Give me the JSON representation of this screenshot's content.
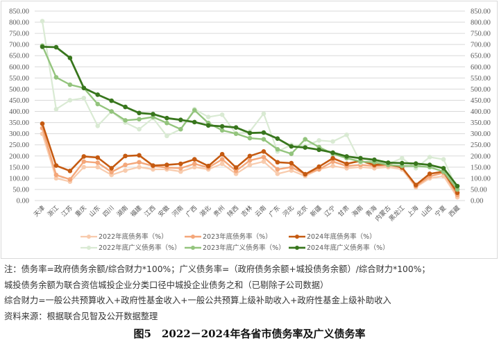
{
  "chart_data": {
    "type": "line",
    "title": "图5 2022－2024年各省市债务率及广义债务率",
    "xlabel": "",
    "ylabel": "",
    "ylim": [
      0,
      850
    ],
    "y_ticks": [
      "0.00",
      "50.00",
      "100.00",
      "150.00",
      "200.00",
      "250.00",
      "300.00",
      "350.00",
      "400.00",
      "450.00",
      "500.00",
      "550.00",
      "600.00",
      "650.00",
      "700.00",
      "750.00",
      "800.00",
      "850.00"
    ],
    "grid": true,
    "legend_position": "bottom",
    "categories": [
      "天津",
      "浙江",
      "江苏",
      "重庆",
      "山东",
      "四川",
      "湖南",
      "福建",
      "江西",
      "安徽",
      "河南",
      "广西",
      "湖北",
      "贵州",
      "陕西",
      "吉林",
      "云南",
      "广东",
      "河北",
      "北京",
      "新疆",
      "辽宁",
      "甘肃",
      "海南",
      "青海",
      "内蒙古",
      "黑龙江",
      "上海",
      "山西",
      "宁夏",
      "西藏"
    ],
    "series": [
      {
        "name": "2022年底债务率（%）",
        "color": "#f8cbad",
        "width": 2.2,
        "values": [
          300,
          100,
          85,
          150,
          150,
          115,
          135,
          150,
          140,
          140,
          130,
          150,
          140,
          165,
          120,
          160,
          175,
          120,
          135,
          110,
          140,
          155,
          145,
          150,
          145,
          150,
          140,
          60,
          100,
          110,
          15
        ]
      },
      {
        "name": "2023年底债务率（%）",
        "color": "#f4a77a",
        "width": 2.4,
        "values": [
          325,
          115,
          95,
          175,
          170,
          128,
          160,
          172,
          155,
          148,
          145,
          165,
          148,
          185,
          133,
          180,
          195,
          140,
          150,
          118,
          140,
          175,
          155,
          160,
          155,
          158,
          150,
          65,
          108,
          125,
          25
        ]
      },
      {
        "name": "2024年底债务率（%）",
        "color": "#c55a11",
        "width": 2.6,
        "values": [
          345,
          157,
          133,
          198,
          193,
          145,
          200,
          203,
          157,
          160,
          165,
          185,
          155,
          208,
          148,
          200,
          220,
          172,
          168,
          118,
          152,
          190,
          165,
          178,
          160,
          163,
          148,
          70,
          120,
          130,
          35
        ]
      },
      {
        "name": "2022年底广义债务率（%）",
        "color": "#d9ead3",
        "width": 2.2,
        "values": [
          805,
          410,
          450,
          460,
          335,
          400,
          350,
          320,
          370,
          290,
          320,
          410,
          375,
          385,
          300,
          310,
          390,
          220,
          250,
          245,
          270,
          265,
          295,
          170,
          180,
          165,
          190,
          145,
          195,
          185,
          50
        ]
      },
      {
        "name": "2023年底广义债务率（%）",
        "color": "#93c47d",
        "width": 2.4,
        "values": [
          695,
          553,
          520,
          505,
          433,
          400,
          360,
          365,
          375,
          348,
          320,
          405,
          348,
          315,
          300,
          280,
          275,
          230,
          210,
          275,
          240,
          210,
          190,
          175,
          172,
          160,
          155,
          155,
          150,
          130,
          50
        ]
      },
      {
        "name": "2024年底广义债务率（%）",
        "color": "#38761d",
        "width": 2.8,
        "values": [
          690,
          688,
          640,
          505,
          475,
          448,
          420,
          393,
          388,
          370,
          362,
          352,
          337,
          333,
          328,
          303,
          305,
          278,
          243,
          238,
          228,
          215,
          198,
          190,
          183,
          170,
          168,
          166,
          160,
          145,
          65
        ]
      }
    ]
  },
  "legend": {
    "items": [
      "2022年底债务率（%）",
      "2023年底债务率（%）",
      "2024年底债务率（%）",
      "2022年底广义债务率（%）",
      "2023年底广义债务率（%）",
      "2024年底广义债务率（%）"
    ]
  },
  "notes": {
    "line1": "注：债务率=政府债务余额/综合财力*100%；广义债务率=（政府债务余额+城投债务余额）/综合财力*100%；",
    "line2": "城投债务余额为联合资信城投企业分类口径中城投企业债务之和（已剔除子公司数据）",
    "line3": "综合财力=一般公共预算收入+政府性基金收入+一般公共预算上级补助收入+政府性基金上级补助收入",
    "line4": "资料来源：根据联合见智及公开数据整理"
  },
  "figure_title": "图5　2022－2024年各省市债务率及广义债务率"
}
